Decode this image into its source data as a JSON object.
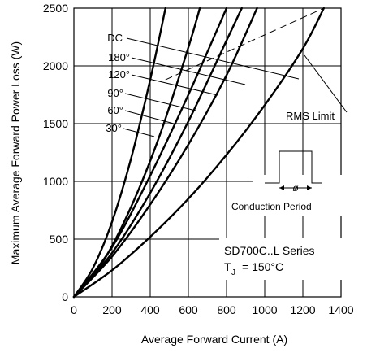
{
  "chart_data": {
    "type": "line",
    "xlabel": "Average Forward Current (A)",
    "ylabel": "Maximum Average Forward Power Loss (W)",
    "xlim": [
      0,
      1400
    ],
    "ylim": [
      0,
      2500
    ],
    "x_ticks": [
      "0",
      "200",
      "400",
      "600",
      "800",
      "1000",
      "1200",
      "1400"
    ],
    "y_ticks": [
      "0",
      "500",
      "1000",
      "1500",
      "2000",
      "2500"
    ],
    "grid": true,
    "series": [
      {
        "name": "30°",
        "x": [
          0,
          100,
          200,
          300,
          400,
          480
        ],
        "y": [
          0,
          250,
          650,
          1200,
          1880,
          2500
        ]
      },
      {
        "name": "60°",
        "x": [
          0,
          150,
          300,
          450,
          600,
          660
        ],
        "y": [
          0,
          300,
          780,
          1400,
          2160,
          2500
        ]
      },
      {
        "name": "90°",
        "x": [
          0,
          200,
          400,
          600,
          800
        ],
        "y": [
          0,
          430,
          1050,
          1750,
          2500
        ]
      },
      {
        "name": "120°",
        "x": [
          0,
          200,
          400,
          600,
          800,
          880
        ],
        "y": [
          0,
          380,
          900,
          1520,
          2220,
          2500
        ]
      },
      {
        "name": "180°",
        "x": [
          0,
          200,
          400,
          600,
          800,
          960
        ],
        "y": [
          0,
          350,
          800,
          1320,
          1920,
          2500
        ]
      },
      {
        "name": "DC",
        "x": [
          0,
          200,
          400,
          600,
          800,
          1000,
          1200,
          1310
        ],
        "y": [
          0,
          230,
          520,
          850,
          1230,
          1660,
          2150,
          2500
        ]
      }
    ],
    "rms_limit": {
      "label": "RMS Limit",
      "x": [
        480,
        1310
      ],
      "y": [
        1880,
        2500
      ]
    },
    "annotations": {
      "inset_label": "Conduction Period",
      "inset_symbol": "ø",
      "series_label": "SD700C..L Series",
      "tj_prefix": "T",
      "tj_subscript": "J",
      "tj_value": "= 150°C"
    }
  }
}
